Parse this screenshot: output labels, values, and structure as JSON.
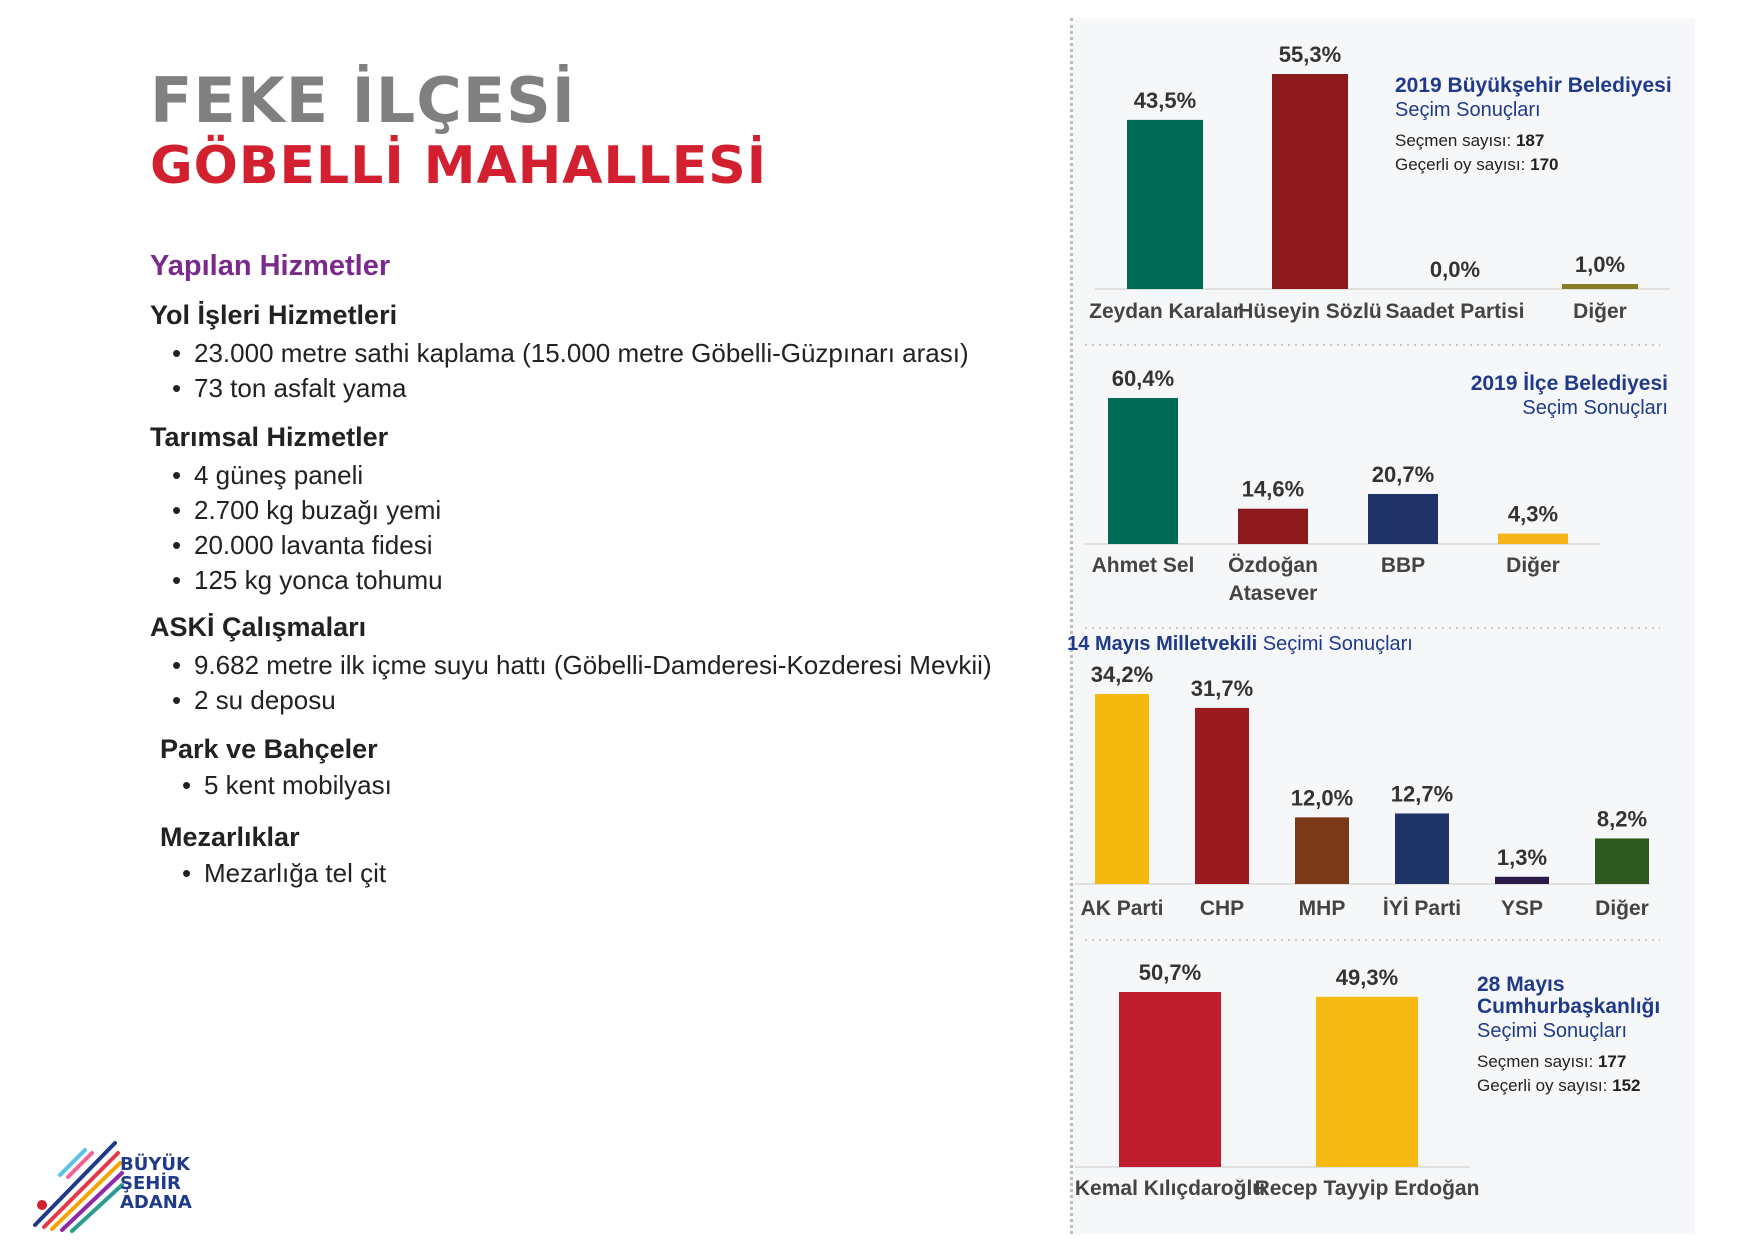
{
  "header": {
    "line1": "FEKE İLÇESİ",
    "line2": "GÖBELLİ MAHALLESİ"
  },
  "services": {
    "heading": "Yapılan Hizmetler",
    "sections": [
      {
        "title": "Yol İşleri Hizmetleri",
        "items": [
          "23.000 metre sathi kaplama  (15.000 metre Göbelli-Güzpınarı arası)",
          "73 ton asfalt yama"
        ]
      },
      {
        "title": "Tarımsal Hizmetler",
        "items": [
          "4 güneş paneli",
          "2.700 kg buzağı yemi",
          "20.000 lavanta fidesi",
          "125 kg yonca tohumu"
        ]
      },
      {
        "title": "ASKİ Çalışmaları",
        "items": [
          "9.682 metre ilk içme suyu hattı (Göbelli-Damderesi-Kozderesi Mevkii)",
          "2 su deposu"
        ]
      },
      {
        "title": "Park ve Bahçeler",
        "items": [
          "5 kent mobilyası"
        ]
      },
      {
        "title": "Mezarlıklar",
        "items": [
          "Mezarlığa tel çit"
        ]
      }
    ]
  },
  "logo": {
    "line1": "BÜYÜK",
    "line2": "ŞEHİR",
    "line3": "ADANA"
  },
  "chart_data": [
    {
      "type": "bar",
      "title": "2019 Büyükşehir Belediyesi",
      "subtitle": "Seçim Sonuçları",
      "info": [
        {
          "label": "Seçmen sayısı:",
          "value": "187"
        },
        {
          "label": "Geçerli oy sayısı:",
          "value": "170"
        }
      ],
      "categories": [
        "Zeydan Karalar",
        "Hüseyin Sözlü",
        "Saadet Partisi",
        "Diğer"
      ],
      "values": [
        43.5,
        55.3,
        0.0,
        1.0
      ],
      "value_labels": [
        "43,5%",
        "55,3%",
        "0,0%",
        "1,0%"
      ],
      "colors": [
        "#006b54",
        "#8c1a1c",
        "#9e9e9e",
        "#8a7d2a"
      ],
      "ylim": [
        0,
        55.3
      ]
    },
    {
      "type": "bar",
      "title": "2019 İlçe Belediyesi",
      "subtitle": "Seçim Sonuçları",
      "categories": [
        "Ahmet Sel",
        "Özdoğan Atasever",
        "BBP",
        "Diğer"
      ],
      "values": [
        60.4,
        14.6,
        20.7,
        4.3
      ],
      "value_labels": [
        "60,4%",
        "14,6%",
        "20,7%",
        "4,3%"
      ],
      "colors": [
        "#006b54",
        "#8c1a1c",
        "#1f3368",
        "#f5b41a"
      ],
      "ylim": [
        0,
        60.4
      ]
    },
    {
      "type": "bar",
      "title": "14 Mayıs Milletvekili",
      "subtitle": "Seçimi Sonuçları",
      "categories": [
        "AK Parti",
        "CHP",
        "MHP",
        "İYİ Parti",
        "YSP",
        "Diğer"
      ],
      "values": [
        34.2,
        31.7,
        12.0,
        12.7,
        1.3,
        8.2
      ],
      "value_labels": [
        "34,2%",
        "31,7%",
        "12,0%",
        "12,7%",
        "1,3%",
        "8,2%"
      ],
      "colors": [
        "#f4b80f",
        "#9a1a20",
        "#7a3a1a",
        "#1e3466",
        "#2c1a4a",
        "#2e5a22"
      ],
      "ylim": [
        0,
        34.2
      ]
    },
    {
      "type": "bar",
      "title": "28 Mayıs Cumhurbaşkanlığı",
      "subtitle": "Seçimi Sonuçları",
      "info": [
        {
          "label": "Seçmen sayısı:",
          "value": "177"
        },
        {
          "label": "Geçerli oy sayısı:",
          "value": "152"
        }
      ],
      "categories": [
        "Kemal Kılıçdaroğlu",
        "Recep Tayyip Erdoğan"
      ],
      "values": [
        50.7,
        49.3
      ],
      "value_labels": [
        "50,7%",
        "49,3%"
      ],
      "colors": [
        "#be1e2d",
        "#f6b912"
      ],
      "ylim": [
        0,
        50.7
      ]
    }
  ]
}
